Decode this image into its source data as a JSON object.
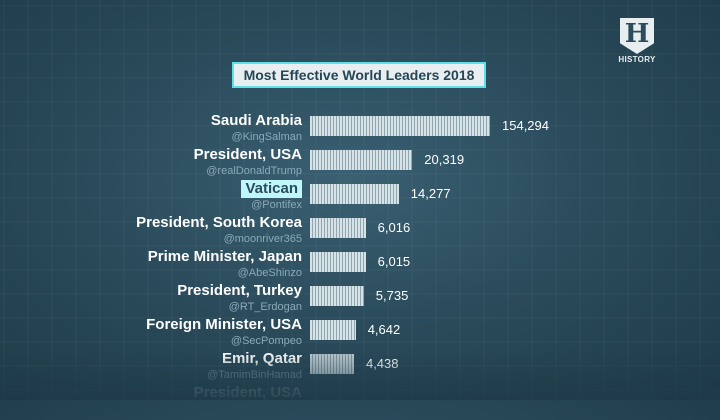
{
  "logo": {
    "letter": "H",
    "word": "HISTORY"
  },
  "chart_data": {
    "type": "bar",
    "orientation": "horizontal",
    "title": "Most Effective World Leaders 2018",
    "categories": [
      "Saudi Arabia",
      "President, USA",
      "Vatican",
      "President, South Korea",
      "Prime Minister, Japan",
      "President, Turkey",
      "Foreign Minister, USA",
      "Emir, Qatar",
      "President, USA"
    ],
    "handles": [
      "@KingSalman",
      "@realDonaldTrump",
      "@Pontifex",
      "@moonriver365",
      "@AbeShinzo",
      "@RT_Erdogan",
      "@SecPompeo",
      "@TamimBinHamad",
      ""
    ],
    "values": [
      154294,
      20319,
      14277,
      6016,
      6015,
      5735,
      4642,
      4438,
      null
    ],
    "value_labels": [
      "154,294",
      "20,319",
      "14,277",
      "6,016",
      "6,015",
      "5,735",
      "4,642",
      "4,438",
      ""
    ],
    "highlighted": "Vatican"
  }
}
